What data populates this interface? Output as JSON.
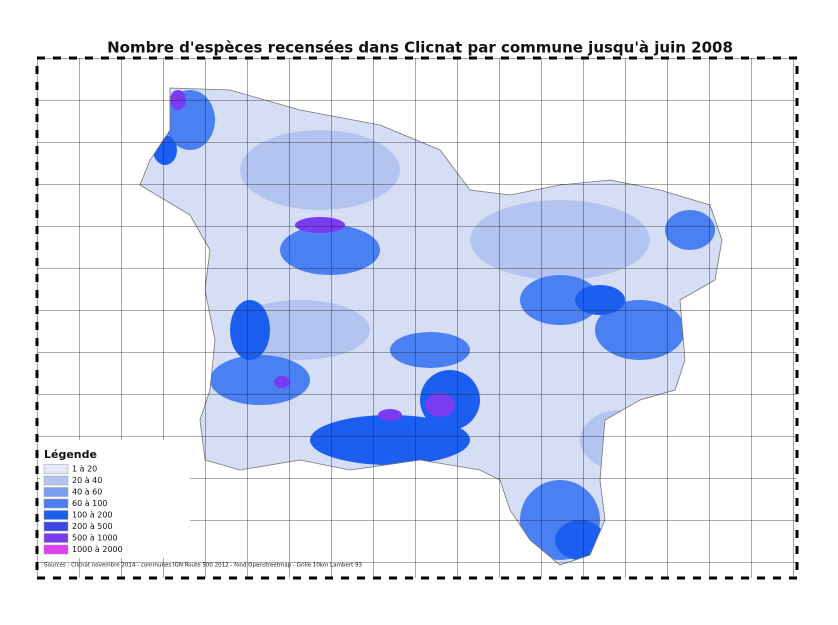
{
  "title": "Nombre d'espèces recensées dans Clicnat par commune jusqu'à juin 2008",
  "legend": {
    "title": "Légende",
    "classes": [
      {
        "label": "1 à 20",
        "color": "#e6ebfa"
      },
      {
        "label": "20 à 40",
        "color": "#b4c4f0"
      },
      {
        "label": "40 à 60",
        "color": "#7c9ef0"
      },
      {
        "label": "60 à 100",
        "color": "#4a80f2"
      },
      {
        "label": "100 à 200",
        "color": "#1c5ef0"
      },
      {
        "label": "200 à 500",
        "color": "#3c46e0"
      },
      {
        "label": "500 à 1000",
        "color": "#7a3cf0"
      },
      {
        "label": "1000 à 2000",
        "color": "#e040f0"
      }
    ]
  },
  "source": "Sources : Clicnat novembre 2014 - communes IGN Route 500 2012 - fond Openstreetmap - Grille 10km Lambert 93"
}
